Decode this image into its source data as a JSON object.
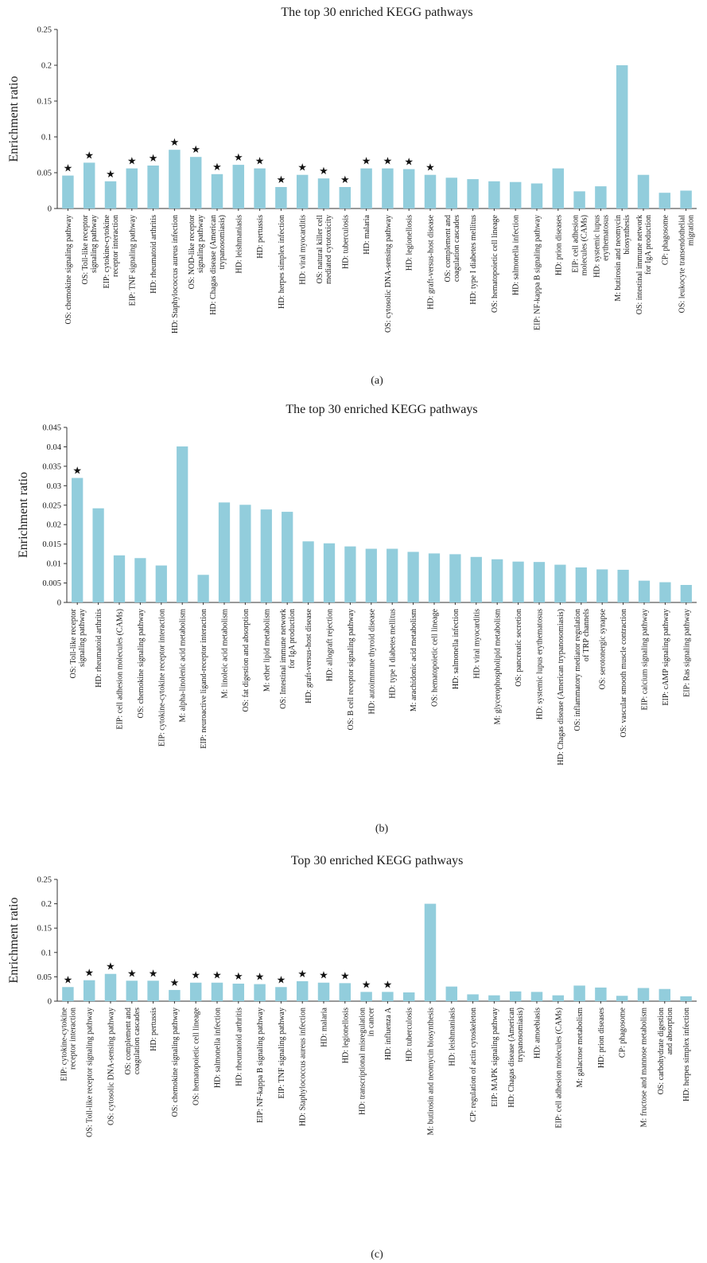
{
  "style": {
    "bar_color": "#92CDDC",
    "axis_color": "#333333"
  },
  "chart_data": [
    {
      "panel": "(a)",
      "type": "bar",
      "title": "The top 30 enriched KEGG pathways",
      "ylabel": "Enrichment ratio",
      "ylim": [
        0,
        0.25
      ],
      "yticks": [
        "0",
        "0.05",
        "0.1",
        "0.15",
        "0.2",
        "0.25"
      ],
      "categories": [
        "OS: chemokine signaling pathway",
        "OS: Toll-like receptor signaling pathway",
        "EIP: cytokine-cytokine receptor interaction",
        "EIP: TNF signaling pathway",
        "HD: rheumatoid arthritis",
        "HD: Staphylococcus aureus infection",
        "OS: NOD-like receptor signaling pathway",
        "HD: Chagas disease (American trypanosomiasis)",
        "HD: leishmaniasis",
        "HD: pertussis",
        "HD: herpes simplex infection",
        "HD: viral myocarditis",
        "OS: natural killer cell mediated cytotoxicity",
        "HD: tuberculosis",
        "HD: malaria",
        "OS: cytosolic DNA-sensing pathway",
        "HD: legionellosis",
        "HD: graft-versus-host disease",
        "OS: complement and coagulation cascades",
        "HD: type I diabetes mellitus",
        "OS: hematopoietic cell lineage",
        "HD: salmonella infection",
        "EIP: NF-kappa B signaling pathway",
        "HD: prion diseases",
        "EIP: cell adhesion molecules (CAMs)",
        "HD: systemic lupus erythematosus",
        "M: butirosin and neomycin biosynthesis",
        "OS: intestinal immune network for IgA production",
        "CP: phagosome",
        "OS: leukocyte transendothelial migration"
      ],
      "label_lines": [
        [
          "OS: chemokine signaling pathway"
        ],
        [
          "OS: Toll-like receptor",
          "signaling pathway"
        ],
        [
          "EIP: cytokine-cytokine",
          "receptor interaction"
        ],
        [
          "EIP: TNF signaling pathway"
        ],
        [
          "HD: rheumatoid arthritis"
        ],
        [
          "HD: Staphylococcus aureus infection"
        ],
        [
          "OS: NOD-like receptor",
          "signaling pathway"
        ],
        [
          "HD: Chagas disease (American",
          "trypanosomiasis)"
        ],
        [
          "HD: leishmaniasis"
        ],
        [
          "HD: pertussis"
        ],
        [
          "HD: herpes simplex infection"
        ],
        [
          "HD: viral myocarditis"
        ],
        [
          "OS: natural killer cell",
          "mediated cytotoxicity"
        ],
        [
          "HD: tuberculosis"
        ],
        [
          "HD: malaria"
        ],
        [
          "OS: cytosolic DNA-sensing pathway"
        ],
        [
          "HD: legionellosis"
        ],
        [
          "HD: graft-versus-host disease"
        ],
        [
          "OS: complement and",
          "coagulation cascades"
        ],
        [
          "HD: type I diabetes mellitus"
        ],
        [
          "OS: hematopoietic cell lineage"
        ],
        [
          "HD: salmonella infection"
        ],
        [
          "EIP: NF-kappa B signaling pathway"
        ],
        [
          "HD: prion diseases"
        ],
        [
          "EIP: cell adhesion",
          "molecules (CAMs)"
        ],
        [
          "HD: systemic lupus",
          "erythematosus"
        ],
        [
          "M: butirosin and neomycin",
          "biosynthesis"
        ],
        [
          "OS: intestinal immune network",
          "for IgA production"
        ],
        [
          "CP: phagosome"
        ],
        [
          "OS: leukocyte transendothelial",
          "migration"
        ]
      ],
      "values": [
        0.046,
        0.064,
        0.038,
        0.056,
        0.06,
        0.082,
        0.072,
        0.048,
        0.061,
        0.056,
        0.03,
        0.047,
        0.042,
        0.03,
        0.056,
        0.056,
        0.055,
        0.047,
        0.043,
        0.041,
        0.038,
        0.037,
        0.035,
        0.056,
        0.024,
        0.031,
        0.2,
        0.047,
        0.022,
        0.025
      ],
      "significant": [
        true,
        true,
        true,
        true,
        true,
        true,
        true,
        true,
        true,
        true,
        true,
        true,
        true,
        true,
        true,
        true,
        true,
        true,
        false,
        false,
        false,
        false,
        false,
        false,
        false,
        false,
        false,
        false,
        false,
        false
      ],
      "marker": "★",
      "grid": false
    },
    {
      "panel": "(b)",
      "type": "bar",
      "title": "The top 30 enriched KEGG pathways",
      "ylabel": "Enrichment ratio",
      "ylim": [
        0,
        0.045
      ],
      "yticks": [
        "0",
        "0.005",
        "0.01",
        "0.015",
        "0.02",
        "0.025",
        "0.03",
        "0.035",
        "0.04",
        "0.045"
      ],
      "categories": [
        "OS: Toll-like receptor signaling pathway",
        "HD: rheumatoid arthritis",
        "EIP: cell adhesion molecules (CAMs)",
        "OS: chemokine signaling pathway",
        "EIP: cytokine-cytokine receptor interaction",
        "M: alpha-linolenic acid metabolism",
        "EIP: neuroactive ligand-receptor interaction",
        "M: linoleic acid metabolism",
        "OS: fat digestion and absorption",
        "M: ether lipid metabolism",
        "OS: Intestinal immune network for IgA production",
        "HD: graft-versus-host disease",
        "HD: allograft rejection",
        "OS: B cell receptor signaling pathway",
        "HD: autoimmune thyroid disease",
        "HD: type I diabetes mellitus",
        "M: arachidonic acid metabolism",
        "OS: hematopoietic cell lineage",
        "HD: salmonella infection",
        "HD: viral myocarditis",
        "M: glycerophospholipid metabolism",
        "OS: pancreatic secretion",
        "HD: systemic lupus erythematosus",
        "HD: Chagas disease (American trypanosomiasis)",
        "OS: inflammatory mediator regulation of TRP channels",
        "OS: serotonergic synapse",
        "OS: vascular smooth muscle contraction",
        "EIP: calcium signaling pathway",
        "EIP: cAMP signaling pathway",
        "EIP: Ras signaling pathway"
      ],
      "label_lines": [
        [
          "OS: Toll-like receptor",
          "signaling pathway"
        ],
        [
          "HD: rheumatoid arthritis"
        ],
        [
          "EIP: cell adhesion molecules (CAMs)"
        ],
        [
          "OS: chemokine signaling pathway"
        ],
        [
          "EIP: cytokine-cytokine receptor interaction"
        ],
        [
          "M: alpha-linolenic acid metabolism"
        ],
        [
          "EIP: neuroactive ligand-receptor interaction"
        ],
        [
          "M: linoleic acid metabolism"
        ],
        [
          "OS: fat digestion and absorption"
        ],
        [
          "M: ether lipid metabolism"
        ],
        [
          "OS: Intestinal immune network",
          "for IgA production"
        ],
        [
          "HD: graft-versus-host disease"
        ],
        [
          "HD: allograft rejection"
        ],
        [
          "OS: B cell receptor signaling pathway"
        ],
        [
          "HD: autoimmune thyroid disease"
        ],
        [
          "HD: type I diabetes mellitus"
        ],
        [
          "M: arachidonic acid metabolism"
        ],
        [
          "OS: hematopoietic cell lineage"
        ],
        [
          "HD: salmonella infection"
        ],
        [
          "HD: viral myocarditis"
        ],
        [
          "M: glycerophospholipid metabolism"
        ],
        [
          "OS: pancreatic secretion"
        ],
        [
          "HD: systemic lupus erythematosus"
        ],
        [
          "HD: Chagas disease (American trypanosomiasis)"
        ],
        [
          "OS: inflammatory mediator regulation",
          "of TRP channels"
        ],
        [
          "OS: serotonergic synapse"
        ],
        [
          "OS: vascular smooth muscle contraction"
        ],
        [
          "EIP: calcium signaling pathway"
        ],
        [
          "EIP: cAMP signaling pathway"
        ],
        [
          "EIP: Ras signaling pathway"
        ]
      ],
      "values": [
        0.032,
        0.0242,
        0.0121,
        0.0114,
        0.0095,
        0.0401,
        0.0071,
        0.0257,
        0.0251,
        0.0239,
        0.0233,
        0.0157,
        0.0152,
        0.0144,
        0.0138,
        0.0138,
        0.013,
        0.0126,
        0.0124,
        0.0117,
        0.0111,
        0.0105,
        0.0104,
        0.0097,
        0.009,
        0.0085,
        0.0084,
        0.0056,
        0.0052,
        0.0045
      ],
      "significant": [
        true,
        false,
        false,
        false,
        false,
        false,
        false,
        false,
        false,
        false,
        false,
        false,
        false,
        false,
        false,
        false,
        false,
        false,
        false,
        false,
        false,
        false,
        false,
        false,
        false,
        false,
        false,
        false,
        false,
        false
      ],
      "marker": "★",
      "grid": false
    },
    {
      "panel": "(c)",
      "type": "bar",
      "title": "Top 30 enriched KEGG pathways",
      "ylabel": "Enrichment ratio",
      "ylim": [
        0,
        0.25
      ],
      "yticks": [
        "0",
        "0.05",
        "0.1",
        "0.15",
        "0.2",
        "0.25"
      ],
      "categories": [
        "EIP: cytokine-cytokine receptor interaction",
        "OS: Toll-like receptor signaling pathway",
        "OS: cytosolic DNA-sensing pathway",
        "OS: complement and coagulation cascades",
        "HD: pertussis",
        "OS: chemokine signaling pathway",
        "OS: hematopoietic cell lineage",
        "HD: salmonella infection",
        "HD: rheumatoid arthritis",
        "EIP: NF-kappa B signaling pathway",
        "EIP: TNF signaling pathway",
        "HD: Staphylococcus aureus infection",
        "HD: malaria",
        "HD: legionellosis",
        "HD: transcriptional misregulation in cancer",
        "HD: influenza A",
        "HD: tuberculosis",
        "M: butirosin and neomycin biosynthesis",
        "HD: leishmaniasis",
        "CP: regulation of actin cytoskeleton",
        "EIP: MAPK signaling pathway",
        "HD: Chagas disease (American trypanosomiasis)",
        "HD: amoebiasis",
        "EIP: cell adhesion molecules (CAMs)",
        "M: galactose metabolism",
        "HD: prion diseases",
        "CP: phagosome",
        "M: fructose and mannose metabolism",
        "OS: carbohydrate digestion and absorption",
        "HD: herpes simplex infection"
      ],
      "label_lines": [
        [
          "EIP: cytokine-cytokine",
          "receptor interaction"
        ],
        [
          "OS: Toll-like receptor signaling pathway"
        ],
        [
          "OS: cytosolic DNA-sensing pathway"
        ],
        [
          "OS: complement and",
          "coagulation cascades"
        ],
        [
          "HD: pertussis"
        ],
        [
          "OS: chemokine signaling pathway"
        ],
        [
          "OS: hematopoietic cell lineage"
        ],
        [
          "HD: salmonella infection"
        ],
        [
          "HD: rheumatoid arthritis"
        ],
        [
          "EIP: NF-kappa B signaling pathway"
        ],
        [
          "EIP: TNF signaling pathway"
        ],
        [
          "HD: Staphylococcus aureus infection"
        ],
        [
          "HD: malaria"
        ],
        [
          "HD: legionellosis"
        ],
        [
          "HD: transcriptional misregulation",
          "in cancer"
        ],
        [
          "HD: influenza A"
        ],
        [
          "HD: tuberculosis"
        ],
        [
          "M: butirosin and neomycin biosynthesis"
        ],
        [
          "HD: leishmaniasis"
        ],
        [
          "CP: regulation of actin cytoskeleton"
        ],
        [
          "EIP: MAPK signaling pathway"
        ],
        [
          "HD: Chagas disease (American",
          "trypanosomiasis)"
        ],
        [
          "HD: amoebiasis"
        ],
        [
          "EIP: cell adhesion molecules (CAMs)"
        ],
        [
          "M: galactose metabolism"
        ],
        [
          "HD: prion diseases"
        ],
        [
          "CP: phagosome"
        ],
        [
          "M: fructose and mannose metabolism"
        ],
        [
          "OS: carbohydrate digestion",
          "and absorption"
        ],
        [
          "HD: herpes simplex infection"
        ]
      ],
      "values": [
        0.029,
        0.043,
        0.056,
        0.042,
        0.042,
        0.023,
        0.038,
        0.038,
        0.036,
        0.035,
        0.029,
        0.041,
        0.038,
        0.037,
        0.019,
        0.019,
        0.018,
        0.2,
        0.03,
        0.014,
        0.012,
        0.02,
        0.019,
        0.012,
        0.032,
        0.028,
        0.011,
        0.027,
        0.025,
        0.01
      ],
      "significant": [
        true,
        true,
        true,
        true,
        true,
        true,
        true,
        true,
        true,
        true,
        true,
        true,
        true,
        true,
        true,
        true,
        false,
        false,
        false,
        false,
        false,
        false,
        false,
        false,
        false,
        false,
        false,
        false,
        false,
        false
      ],
      "marker": "★",
      "grid": false
    }
  ]
}
